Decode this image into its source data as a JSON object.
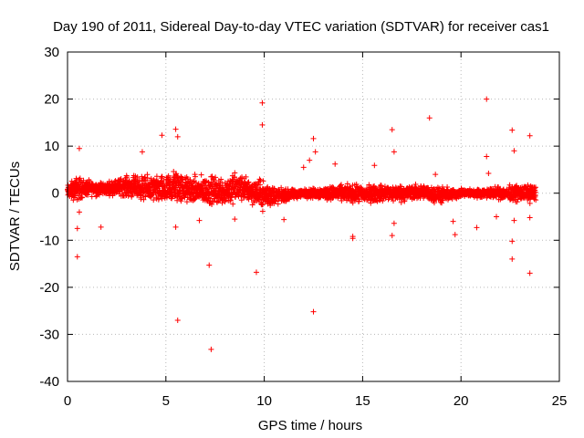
{
  "chart_data": {
    "type": "scatter",
    "title": "Day 190 of 2011, Sidereal Day-to-day VTEC variation (SDTVAR) for receiver cas1",
    "xlabel": "GPS time / hours",
    "ylabel": "SDTVAR / TECUs",
    "xlim": [
      0,
      25
    ],
    "ylim": [
      -40,
      30
    ],
    "xticks": [
      0,
      5,
      10,
      15,
      20,
      25
    ],
    "yticks": [
      30,
      20,
      10,
      0,
      -10,
      -20,
      -30,
      -40
    ],
    "grid": true,
    "marker": "+",
    "color": "#ff0000",
    "band_envelope": {
      "description": "dense band of points; per-hour approx min/max SDTVAR",
      "x": [
        0,
        0.5,
        1,
        2,
        3,
        4,
        5,
        5.5,
        6,
        7,
        8,
        8.5,
        9,
        10,
        11,
        12,
        13,
        14,
        15,
        16,
        17,
        18,
        19,
        20,
        21,
        22,
        23,
        23.8
      ],
      "low": [
        -1.5,
        -2,
        -1,
        -0.5,
        -1,
        -2,
        -3,
        -3,
        -2.5,
        -3,
        -3,
        -3,
        -2,
        -4,
        -2,
        -1,
        -1.5,
        -2,
        -2.5,
        -2,
        -2,
        -1.5,
        -2.5,
        -1,
        -1,
        -1.5,
        -2,
        -2
      ],
      "high": [
        2,
        4,
        3,
        2.5,
        4,
        4,
        4,
        6,
        4,
        4,
        4,
        5,
        4,
        3,
        1,
        1,
        1.5,
        2,
        2,
        2,
        2,
        2,
        1.5,
        1,
        1,
        1.5,
        2,
        2
      ]
    },
    "outliers": [
      {
        "x": 0.5,
        "y": -13.5
      },
      {
        "x": 0.5,
        "y": -7.5
      },
      {
        "x": 0.6,
        "y": -4
      },
      {
        "x": 0.6,
        "y": 9.5
      },
      {
        "x": 1.7,
        "y": -7.2
      },
      {
        "x": 3.8,
        "y": 8.8
      },
      {
        "x": 4.8,
        "y": 12.3
      },
      {
        "x": 5.5,
        "y": 13.6
      },
      {
        "x": 5.6,
        "y": 12
      },
      {
        "x": 5.5,
        "y": -7.2
      },
      {
        "x": 5.6,
        "y": -27
      },
      {
        "x": 6.7,
        "y": -5.8
      },
      {
        "x": 7.2,
        "y": -15.3
      },
      {
        "x": 7.3,
        "y": -33.2
      },
      {
        "x": 8.5,
        "y": -5.5
      },
      {
        "x": 9.6,
        "y": -16.8
      },
      {
        "x": 9.9,
        "y": 19.2
      },
      {
        "x": 9.9,
        "y": 14.5
      },
      {
        "x": 11,
        "y": -5.6
      },
      {
        "x": 12,
        "y": 5.5
      },
      {
        "x": 12.3,
        "y": 7
      },
      {
        "x": 12.5,
        "y": 11.6
      },
      {
        "x": 12.6,
        "y": 8.8
      },
      {
        "x": 12.5,
        "y": -25.2
      },
      {
        "x": 13.6,
        "y": 6.2
      },
      {
        "x": 14.5,
        "y": -9.6
      },
      {
        "x": 14.5,
        "y": -9.2
      },
      {
        "x": 15.6,
        "y": 5.9
      },
      {
        "x": 16.5,
        "y": 13.5
      },
      {
        "x": 16.6,
        "y": 8.8
      },
      {
        "x": 16.6,
        "y": -6.4
      },
      {
        "x": 16.5,
        "y": -9
      },
      {
        "x": 18.4,
        "y": 16
      },
      {
        "x": 18.7,
        "y": 4
      },
      {
        "x": 19.6,
        "y": -6
      },
      {
        "x": 19.7,
        "y": -8.8
      },
      {
        "x": 20.8,
        "y": -7.3
      },
      {
        "x": 21.3,
        "y": 20
      },
      {
        "x": 21.3,
        "y": 7.8
      },
      {
        "x": 21.4,
        "y": 4.2
      },
      {
        "x": 21.8,
        "y": -5
      },
      {
        "x": 22.6,
        "y": 13.4
      },
      {
        "x": 22.7,
        "y": 9
      },
      {
        "x": 22.6,
        "y": -10.2
      },
      {
        "x": 22.6,
        "y": -14
      },
      {
        "x": 22.7,
        "y": -5.8
      },
      {
        "x": 23.5,
        "y": 12.2
      },
      {
        "x": 23.5,
        "y": -17
      },
      {
        "x": 23.5,
        "y": -5.2
      }
    ]
  }
}
